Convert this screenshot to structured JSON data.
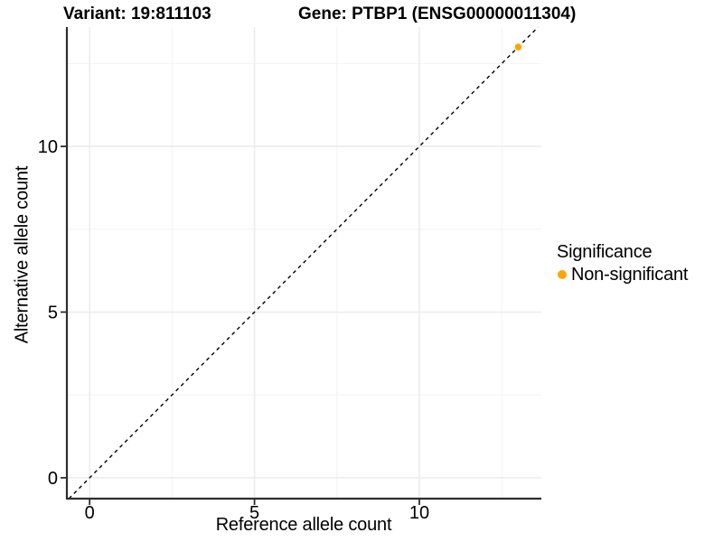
{
  "titles": {
    "variant": "Variant: 19:811103",
    "gene": "Gene: PTBP1 (ENSG00000011304)"
  },
  "chart_data": {
    "type": "scatter",
    "title_left": "Variant: 19:811103",
    "title_right": "Gene: PTBP1 (ENSG00000011304)",
    "xlabel": "Reference allele count",
    "ylabel": "Alternative allele count",
    "xlim": [
      -0.69,
      13.7
    ],
    "ylim": [
      -0.63,
      13.6
    ],
    "x_major_ticks": [
      0,
      5,
      10
    ],
    "y_major_ticks": [
      0,
      5,
      10
    ],
    "x_minor_ticks": [
      2.5,
      7.5,
      12.5
    ],
    "y_minor_ticks": [
      2.5,
      7.5,
      12.5
    ],
    "grid": true,
    "points": [
      {
        "x": 13,
        "y": 13,
        "series": "Non-significant",
        "color": "#FFA500"
      }
    ],
    "reference_line": {
      "type": "abline",
      "slope": 1,
      "intercept": 0,
      "style": "dashed",
      "color": "#000000"
    },
    "legend": {
      "title": "Significance",
      "position": "right",
      "entries": [
        {
          "label": "Non-significant",
          "color": "#FFA500"
        }
      ]
    },
    "colors": {
      "point": "#FFA500",
      "axis_line": "#2e2e2e",
      "grid_major": "#ebebeb",
      "grid_minor": "#f2f2f2",
      "text": "#000000"
    }
  }
}
